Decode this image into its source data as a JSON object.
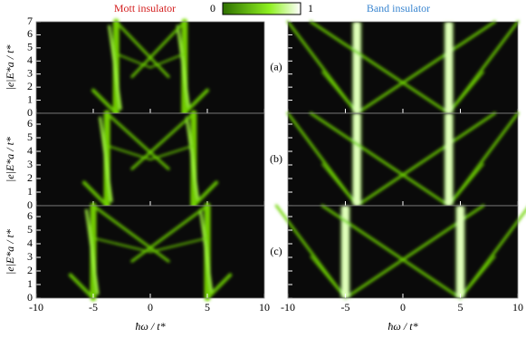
{
  "titles": [
    "Mott insulator",
    "Band insulator"
  ],
  "colorbar": {
    "ticks": [
      0,
      1
    ]
  },
  "chart_data": [
    {
      "type": "heatmap",
      "panel": "(a)",
      "ylabel": "|e|E*a / t*",
      "xlim": [
        -10,
        10
      ],
      "ylim": [
        0,
        7
      ],
      "xticks": [
        -10,
        -5,
        0,
        5,
        10
      ],
      "yticks": [
        0,
        1,
        2,
        3,
        4,
        5,
        6,
        7
      ]
    },
    {
      "type": "heatmap",
      "panel": "(b)",
      "ylabel": "|e|E*a / t*",
      "xlim": [
        -10,
        10
      ],
      "ylim": [
        0,
        6.8
      ],
      "xticks": [
        -10,
        -5,
        0,
        5,
        10
      ],
      "yticks": [
        0,
        1,
        2,
        3,
        4,
        5,
        6
      ]
    },
    {
      "type": "heatmap",
      "panel": "(c)",
      "ylabel": "|e|E*a / t*",
      "xlabel": "ħω / t*",
      "xlim": [
        -10,
        10
      ],
      "ylim": [
        0,
        6.8
      ],
      "xticks": [
        -10,
        -5,
        0,
        5,
        10
      ],
      "yticks": [
        0,
        1,
        2,
        3,
        4,
        5,
        6
      ]
    },
    {
      "type": "heatmap",
      "xlim": [
        -10,
        10
      ],
      "ylim": [
        0,
        7
      ],
      "xticks": [
        -10,
        -5,
        0,
        5,
        10
      ],
      "yticks": [
        0,
        1,
        2,
        3,
        4,
        5,
        6,
        7
      ]
    },
    {
      "type": "heatmap",
      "xlim": [
        -10,
        10
      ],
      "ylim": [
        0,
        6.8
      ],
      "xticks": [
        -10,
        -5,
        0,
        5,
        10
      ],
      "yticks": [
        0,
        1,
        2,
        3,
        4,
        5,
        6
      ]
    },
    {
      "type": "heatmap",
      "xlabel": "ħω / t*",
      "xlim": [
        -10,
        10
      ],
      "ylim": [
        0,
        6.8
      ],
      "xticks": [
        -10,
        -5,
        0,
        5,
        10
      ],
      "yticks": [
        0,
        1,
        2,
        3,
        4,
        5,
        6
      ]
    }
  ]
}
